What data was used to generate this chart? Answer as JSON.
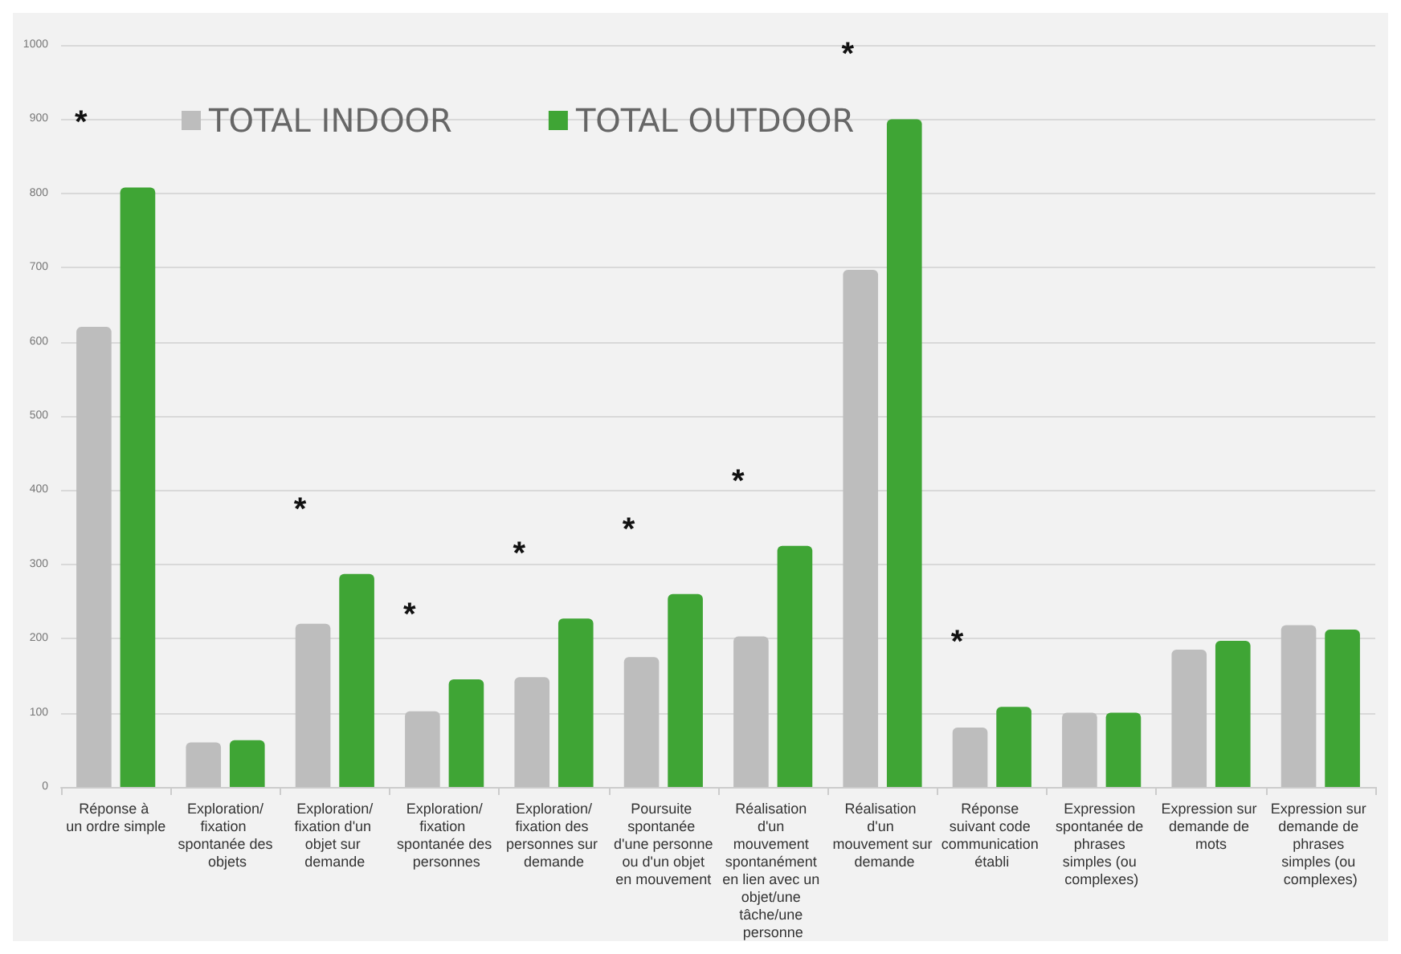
{
  "chart_data": {
    "type": "bar",
    "categories": [
      "Réponse à un ordre simple",
      "Exploration/fixation spontanée des objets",
      "Exploration/fixation d'un objet sur demande",
      "Exploration/fixation spontanée des personnes",
      "Exploration/fixation des personnes sur demande",
      "Poursuite spontanée d'une personne ou d'un objet en mouvement",
      "Réalisation d'un mouvement spontanément en lien avec un objet/une tâche/une personne",
      "Réalisation d'un mouvement sur demande",
      "Réponse suivant code communication établi",
      "Expression spontanée de phrases simples (ou complexes)",
      "Expression sur demande de mots",
      "Expression sur demande de phrases simples (ou complexes)"
    ],
    "series": [
      {
        "name": "TOTAL INDOOR",
        "color": "#bdbdbd",
        "values": [
          620,
          60,
          220,
          102,
          148,
          175,
          203,
          697,
          80,
          100,
          185,
          218
        ]
      },
      {
        "name": "TOTAL OUTDOOR",
        "color": "#3fa535",
        "values": [
          808,
          63,
          287,
          145,
          227,
          260,
          325,
          900,
          108,
          100,
          197,
          212
        ]
      }
    ],
    "annotations": [
      {
        "text": "*",
        "x": "Réponse à un ordre simple",
        "y": 808
      },
      {
        "text": "*",
        "x": "Exploration/fixation d'un objet sur demande",
        "y": 287
      },
      {
        "text": "*",
        "x": "Exploration/fixation spontanée des personnes",
        "y": 145
      },
      {
        "text": "*",
        "x": "Exploration/fixation des personnes sur demande",
        "y": 227
      },
      {
        "text": "*",
        "x": "Poursuite spontanée d'une personne ou d'un objet en mouvement",
        "y": 260
      },
      {
        "text": "*",
        "x": "Réalisation d'un mouvement spontanément en lien avec un objet/une tâche/une personne",
        "y": 325
      },
      {
        "text": "*",
        "x": "Réalisation d'un mouvement sur demande",
        "y": 900
      },
      {
        "text": "*",
        "x": "Réponse suivant code communication établi",
        "y": 108
      }
    ],
    "ylim": [
      0,
      1000
    ],
    "yticks": [
      0,
      100,
      200,
      300,
      400,
      500,
      600,
      700,
      800,
      900,
      1000
    ],
    "grid": "y",
    "legend": "top left"
  }
}
